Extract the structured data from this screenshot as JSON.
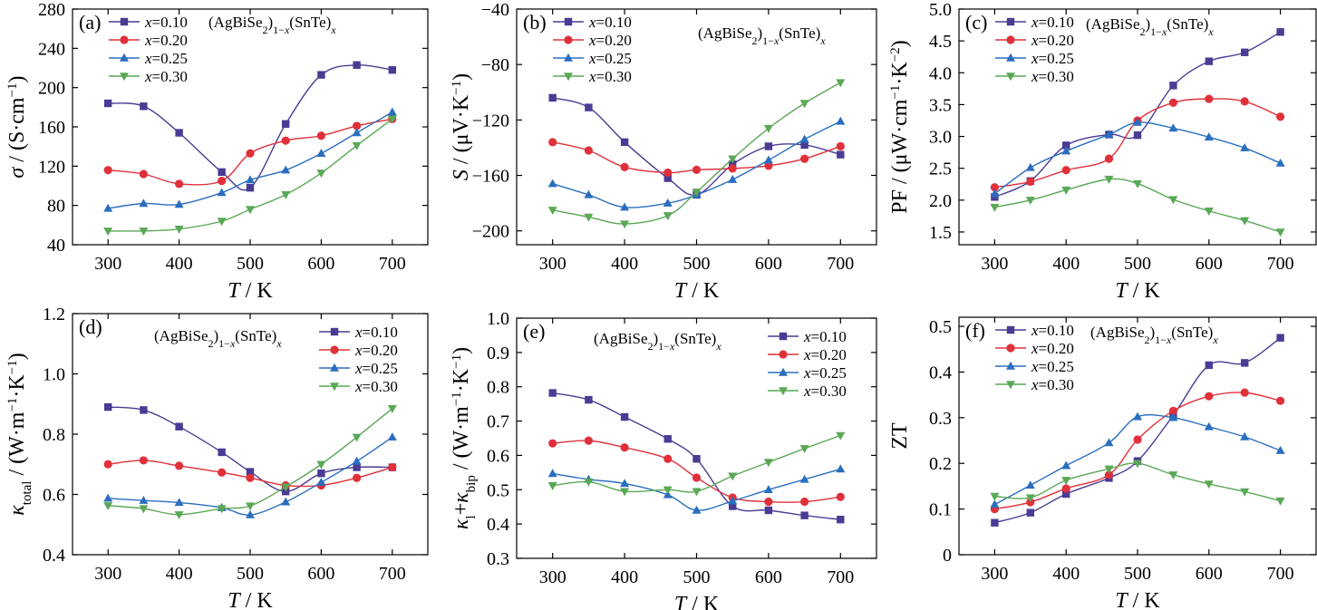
{
  "chart_data": [
    {
      "type": "line",
      "panel_label": "(a)",
      "formula": "(AgBiSe₂)₁₋ₓ(SnTe)ₓ",
      "xlabel": "T / K",
      "ylabel": "σ / (S·cm⁻¹)",
      "xlim": [
        250,
        750
      ],
      "ylim": [
        40,
        280
      ],
      "xticks": [
        300,
        400,
        500,
        600,
        700
      ],
      "yticks": [
        40,
        80,
        120,
        160,
        200,
        240,
        280
      ],
      "legend_position": "top-left",
      "x": [
        300,
        350,
        400,
        460,
        500,
        550,
        600,
        650,
        700
      ],
      "series": [
        {
          "name": "x=0.10",
          "values": [
            184,
            181,
            154,
            114,
            98,
            163,
            213,
            223,
            218
          ]
        },
        {
          "name": "x=0.20",
          "values": [
            116,
            112,
            102,
            105,
            133,
            146,
            151,
            161,
            168
          ]
        },
        {
          "name": "x=0.25",
          "values": [
            77,
            82,
            81,
            93,
            106,
            116,
            133,
            154,
            175
          ]
        },
        {
          "name": "x=0.30",
          "values": [
            54,
            54,
            56,
            64,
            76,
            91,
            113,
            141,
            168
          ]
        }
      ]
    },
    {
      "type": "line",
      "panel_label": "(b)",
      "formula": "(AgBiSe₂)₁₋ₓ(SnTe)ₓ",
      "xlabel": "T / K",
      "ylabel": "S / (μV·K⁻¹)",
      "xlim": [
        250,
        750
      ],
      "ylim": [
        -210,
        -40
      ],
      "xticks": [
        300,
        400,
        500,
        600,
        700
      ],
      "yticks": [
        -200,
        -160,
        -120,
        -80,
        -40
      ],
      "legend_position": "top-left",
      "x": [
        300,
        350,
        400,
        460,
        500,
        550,
        600,
        650,
        700
      ],
      "series": [
        {
          "name": "x=0.10",
          "values": [
            -104,
            -111,
            -136,
            -162,
            -174,
            -152,
            -139,
            -138,
            -145
          ]
        },
        {
          "name": "x=0.20",
          "values": [
            -136,
            -142,
            -154,
            -158,
            -156,
            -155,
            -153,
            -148,
            -139
          ]
        },
        {
          "name": "x=0.25",
          "values": [
            -166,
            -174,
            -183,
            -180,
            -174,
            -163,
            -149,
            -134,
            -121
          ]
        },
        {
          "name": "x=0.30",
          "values": [
            -185,
            -190,
            -195,
            -189,
            -172,
            -148,
            -126,
            -108,
            -93
          ]
        }
      ]
    },
    {
      "type": "line",
      "panel_label": "(c)",
      "formula": "(AgBiSe₂)₁₋ₓ(SnTe)ₓ",
      "xlabel": "T / K",
      "ylabel": "PF / (μW·cm⁻¹·K⁻²)",
      "xlim": [
        250,
        750
      ],
      "ylim": [
        1.3,
        5.0
      ],
      "xticks": [
        300,
        400,
        500,
        600,
        700
      ],
      "yticks": [
        1.5,
        2.0,
        2.5,
        3.0,
        3.5,
        4.0,
        4.5,
        5.0
      ],
      "legend_position": "top-left",
      "x": [
        300,
        350,
        400,
        460,
        500,
        550,
        600,
        650,
        700
      ],
      "series": [
        {
          "name": "x=0.10",
          "values": [
            2.05,
            2.3,
            2.86,
            3.03,
            3.02,
            3.8,
            4.18,
            4.32,
            4.64
          ]
        },
        {
          "name": "x=0.20",
          "values": [
            2.2,
            2.29,
            2.47,
            2.65,
            3.25,
            3.53,
            3.59,
            3.55,
            3.31
          ]
        },
        {
          "name": "x=0.25",
          "values": [
            2.1,
            2.51,
            2.77,
            3.03,
            3.22,
            3.13,
            2.99,
            2.82,
            2.58
          ]
        },
        {
          "name": "x=0.30",
          "values": [
            1.89,
            2.0,
            2.16,
            2.33,
            2.26,
            2.01,
            1.83,
            1.68,
            1.5
          ]
        }
      ]
    },
    {
      "type": "line",
      "panel_label": "(d)",
      "formula": "(AgBiSe₂)₁₋ₓ(SnTe)ₓ",
      "xlabel": "T / K",
      "ylabel": "κtotal / (W·m⁻¹·K⁻¹)",
      "xlim": [
        250,
        750
      ],
      "ylim": [
        0.4,
        1.2
      ],
      "xticks": [
        300,
        400,
        500,
        600,
        700
      ],
      "yticks": [
        0.4,
        0.6,
        0.8,
        1.0,
        1.2
      ],
      "legend_position": "top-right",
      "x": [
        300,
        350,
        400,
        460,
        500,
        550,
        600,
        650,
        700
      ],
      "series": [
        {
          "name": "x=0.10",
          "values": [
            0.89,
            0.88,
            0.825,
            0.74,
            0.675,
            0.61,
            0.67,
            0.69,
            0.69
          ]
        },
        {
          "name": "x=0.20",
          "values": [
            0.7,
            0.713,
            0.695,
            0.673,
            0.655,
            0.63,
            0.63,
            0.655,
            0.69
          ]
        },
        {
          "name": "x=0.25",
          "values": [
            0.587,
            0.58,
            0.573,
            0.556,
            0.532,
            0.575,
            0.64,
            0.71,
            0.79
          ]
        },
        {
          "name": "x=0.30",
          "values": [
            0.563,
            0.553,
            0.533,
            0.553,
            0.562,
            0.625,
            0.7,
            0.79,
            0.885
          ]
        }
      ]
    },
    {
      "type": "line",
      "panel_label": "(e)",
      "formula": "(AgBiSe₂)₁₋ₓ(SnTe)ₓ",
      "xlabel": "T / K",
      "ylabel": "κl+κbip / (W·m⁻¹·K⁻¹)",
      "xlim": [
        250,
        750
      ],
      "ylim": [
        0.3,
        1.0
      ],
      "xticks": [
        300,
        400,
        500,
        600,
        700
      ],
      "yticks": [
        0.3,
        0.4,
        0.5,
        0.6,
        0.7,
        0.8,
        0.9,
        1.0
      ],
      "legend_position": "top-right",
      "x": [
        300,
        350,
        400,
        460,
        500,
        550,
        600,
        650,
        700
      ],
      "series": [
        {
          "name": "x=0.10",
          "values": [
            0.782,
            0.762,
            0.712,
            0.648,
            0.59,
            0.452,
            0.44,
            0.425,
            0.413
          ]
        },
        {
          "name": "x=0.20",
          "values": [
            0.635,
            0.643,
            0.623,
            0.59,
            0.535,
            0.477,
            0.465,
            0.465,
            0.479
          ]
        },
        {
          "name": "x=0.25",
          "values": [
            0.547,
            0.53,
            0.518,
            0.485,
            0.44,
            0.467,
            0.5,
            0.53,
            0.56
          ]
        },
        {
          "name": "x=0.30",
          "values": [
            0.512,
            0.523,
            0.495,
            0.5,
            0.495,
            0.54,
            0.58,
            0.62,
            0.658
          ]
        }
      ]
    },
    {
      "type": "line",
      "panel_label": "(f)",
      "formula": "(AgBiSe₂)₁₋ₓ(SnTe)ₓ",
      "xlabel": "T / K",
      "ylabel": "ZT",
      "xlim": [
        250,
        750
      ],
      "ylim": [
        0,
        0.52
      ],
      "xticks": [
        300,
        400,
        500,
        600,
        700
      ],
      "yticks": [
        0,
        0.1,
        0.2,
        0.3,
        0.4,
        0.5
      ],
      "legend_position": "top-left",
      "x": [
        300,
        350,
        400,
        460,
        500,
        550,
        600,
        650,
        700
      ],
      "series": [
        {
          "name": "x=0.10",
          "values": [
            0.07,
            0.092,
            0.133,
            0.168,
            0.205,
            0.305,
            0.415,
            0.42,
            0.475
          ]
        },
        {
          "name": "x=0.20",
          "values": [
            0.1,
            0.115,
            0.145,
            0.175,
            0.252,
            0.315,
            0.347,
            0.355,
            0.337
          ]
        },
        {
          "name": "x=0.25",
          "values": [
            0.11,
            0.152,
            0.195,
            0.245,
            0.302,
            0.3,
            0.28,
            0.258,
            0.228
          ]
        },
        {
          "name": "x=0.30",
          "values": [
            0.128,
            0.125,
            0.163,
            0.188,
            0.2,
            0.175,
            0.155,
            0.138,
            0.118
          ]
        }
      ]
    }
  ],
  "series_colors": [
    "#4a3b94",
    "#e0303a",
    "#2a6ebf",
    "#5aa856"
  ],
  "series_markers": [
    "square",
    "circle",
    "triangle-up",
    "triangle-down"
  ]
}
